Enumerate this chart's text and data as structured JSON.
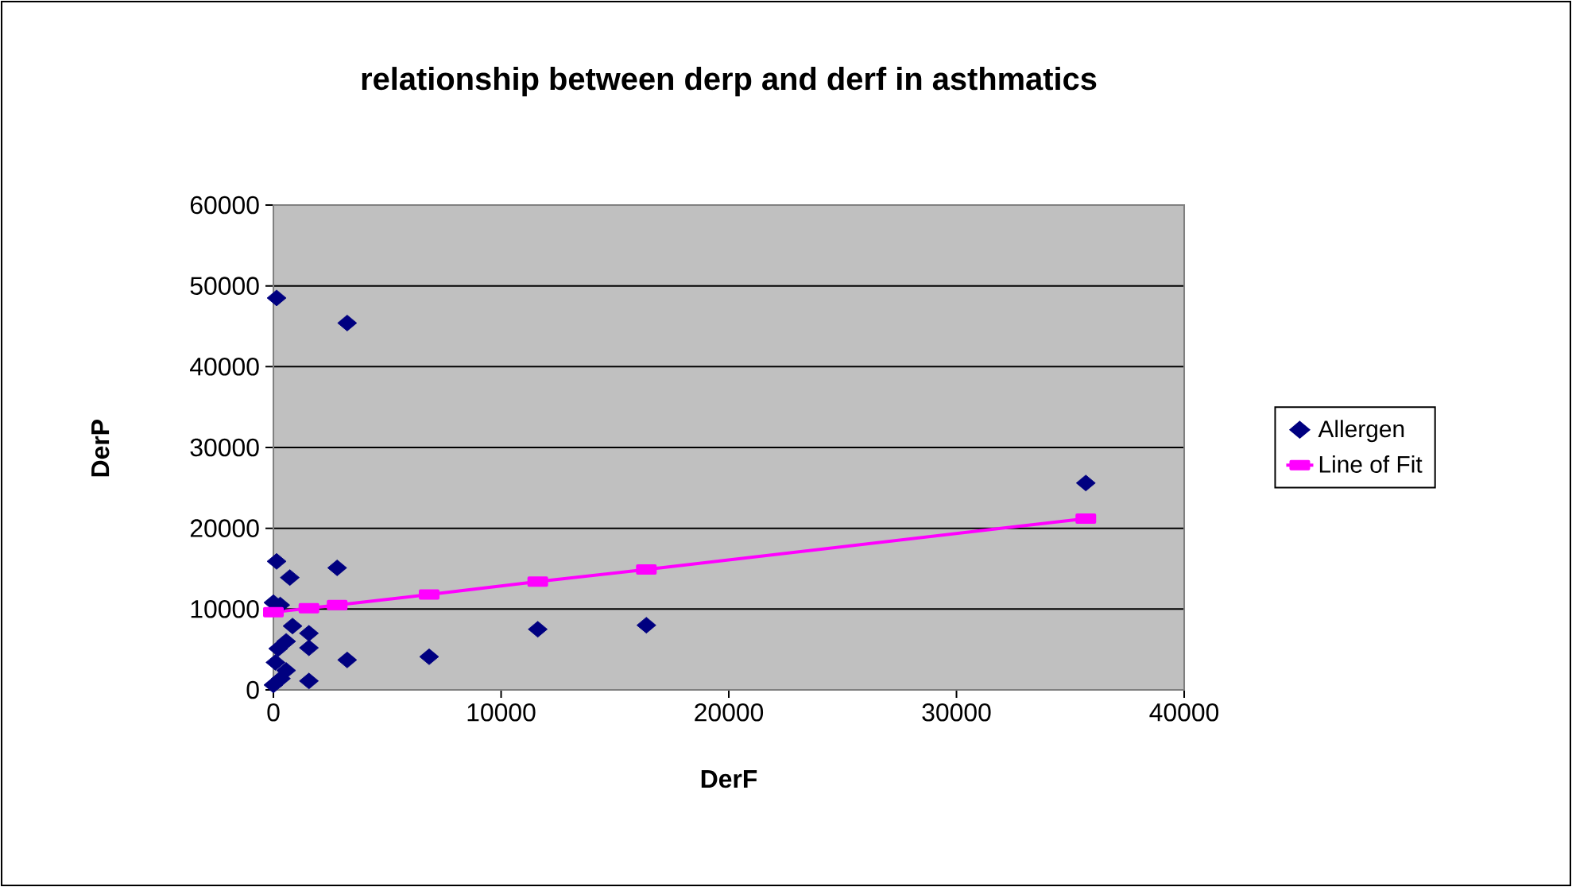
{
  "chart_data": {
    "type": "scatter",
    "title": "relationship between derp and derf in asthmatics",
    "xlabel": "DerF",
    "ylabel": "DerP",
    "series": [
      {
        "name": "Allergen",
        "color": "#000080",
        "marker": "diamond",
        "x": [
          0,
          140,
          3240,
          140,
          720,
          2800,
          0,
          300,
          840,
          1560,
          1560,
          560,
          210,
          90,
          560,
          330,
          1560,
          3240,
          6840,
          11610,
          16380,
          35680
        ],
        "values": [
          600,
          48500,
          45400,
          15900,
          13900,
          15100,
          10800,
          10500,
          7900,
          7000,
          5200,
          6000,
          5100,
          3400,
          2400,
          1400,
          1100,
          3700,
          4100,
          7500,
          8000,
          25600
        ]
      },
      {
        "name": "Line of Fit",
        "type": "line",
        "color": "#ff00ff",
        "marker": "square",
        "line_style": "solid",
        "x": [
          0,
          1560,
          2800,
          6840,
          11610,
          16380,
          35680
        ],
        "values": [
          9600,
          10100,
          10500,
          11800,
          13400,
          14900,
          21200
        ]
      }
    ],
    "xlim": [
      0,
      40000
    ],
    "ylim": [
      0,
      60000
    ],
    "xticks": [
      0,
      10000,
      20000,
      30000,
      40000
    ],
    "yticks": [
      0,
      10000,
      20000,
      30000,
      40000,
      50000,
      60000
    ],
    "grid": "y",
    "legend": "right"
  }
}
